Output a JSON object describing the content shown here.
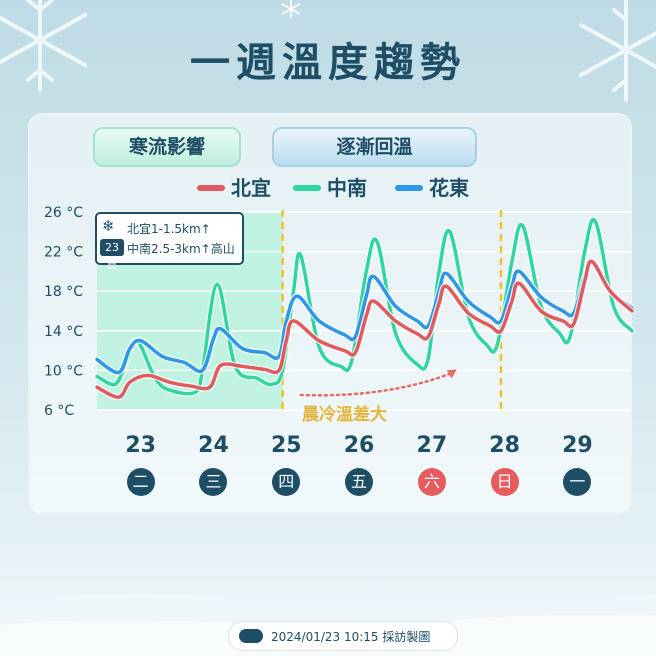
{
  "title": "一週溫度趨勢",
  "phases": [
    "寒流影響",
    "逐漸回溫"
  ],
  "annotation": {
    "badge": "23日",
    "line1": "北宜1-1.5km↑",
    "line2": "中南2.5-3km↑高山"
  },
  "note": "晨冷溫差大",
  "footer": "2024/01/23 10:15 採訪製圖",
  "colors": {
    "title": "#1d4e66",
    "northeast": "#e05a5e",
    "central_south": "#2fd6a0",
    "hualien": "#2e97e8",
    "weekend": "#e55b5e",
    "weekday": "#1d4e66",
    "highlight_line": "#f0c12c"
  },
  "icons": [
    "snowflake-icon",
    "cwa-logo-icon",
    "snowflake-decoration-icon"
  ],
  "chart_data": {
    "type": "line",
    "title": "",
    "xlabel": "",
    "ylabel": "",
    "ylim": [
      6,
      26
    ],
    "yticks": [
      "6 °C",
      "10 °C",
      "14 °C",
      "18 °C",
      "22 °C",
      "26 °C"
    ],
    "ytick_values": [
      6,
      10,
      14,
      18,
      22,
      26
    ],
    "legend_position": "top-center",
    "grid": true,
    "days": [
      {
        "date": "23",
        "weekday": "二",
        "weekend": false
      },
      {
        "date": "24",
        "weekday": "三",
        "weekend": false
      },
      {
        "date": "25",
        "weekday": "四",
        "weekend": false
      },
      {
        "date": "26",
        "weekday": "五",
        "weekend": false
      },
      {
        "date": "27",
        "weekday": "六",
        "weekend": true
      },
      {
        "date": "28",
        "weekday": "日",
        "weekend": true
      },
      {
        "date": "29",
        "weekday": "一",
        "weekend": false
      }
    ],
    "x_start_day": 22.4,
    "x_end_day": 29.75,
    "markers_day": [
      24.95,
      27.95
    ],
    "cold_band_end_day": 24.95,
    "series": [
      {
        "name": "北宜",
        "color": "#e05a5e",
        "points": [
          [
            22.4,
            8.3
          ],
          [
            22.7,
            7.3
          ],
          [
            22.85,
            8.8
          ],
          [
            23.1,
            9.5
          ],
          [
            23.4,
            8.8
          ],
          [
            23.7,
            8.4
          ],
          [
            23.95,
            8.3
          ],
          [
            24.1,
            10.5
          ],
          [
            24.4,
            10.4
          ],
          [
            24.7,
            10.1
          ],
          [
            24.9,
            10.0
          ],
          [
            25.0,
            13.0
          ],
          [
            25.1,
            15.0
          ],
          [
            25.45,
            13.0
          ],
          [
            25.8,
            12.0
          ],
          [
            25.95,
            11.8
          ],
          [
            26.1,
            15.5
          ],
          [
            26.2,
            17.0
          ],
          [
            26.5,
            15.0
          ],
          [
            26.8,
            13.7
          ],
          [
            26.95,
            13.4
          ],
          [
            27.1,
            16.8
          ],
          [
            27.2,
            18.5
          ],
          [
            27.5,
            15.8
          ],
          [
            27.8,
            14.5
          ],
          [
            27.95,
            14.0
          ],
          [
            28.1,
            17.0
          ],
          [
            28.2,
            18.8
          ],
          [
            28.5,
            16.0
          ],
          [
            28.8,
            15.0
          ],
          [
            28.95,
            14.7
          ],
          [
            29.1,
            19.0
          ],
          [
            29.2,
            21.0
          ],
          [
            29.45,
            18.0
          ],
          [
            29.75,
            16.0
          ]
        ]
      },
      {
        "name": "中南",
        "color": "#2fd6a0",
        "points": [
          [
            22.4,
            9.4
          ],
          [
            22.65,
            8.6
          ],
          [
            22.8,
            10.8
          ],
          [
            22.95,
            13.0
          ],
          [
            23.2,
            9.2
          ],
          [
            23.4,
            8.0
          ],
          [
            23.75,
            7.8
          ],
          [
            23.85,
            10.0
          ],
          [
            24.05,
            18.7
          ],
          [
            24.3,
            10.4
          ],
          [
            24.6,
            9.2
          ],
          [
            24.8,
            8.6
          ],
          [
            24.95,
            10.0
          ],
          [
            25.1,
            18.0
          ],
          [
            25.2,
            21.6
          ],
          [
            25.45,
            12.4
          ],
          [
            25.75,
            10.4
          ],
          [
            25.9,
            11.0
          ],
          [
            26.1,
            20.0
          ],
          [
            26.25,
            23.0
          ],
          [
            26.5,
            13.8
          ],
          [
            26.8,
            10.6
          ],
          [
            26.95,
            11.2
          ],
          [
            27.1,
            20.0
          ],
          [
            27.25,
            24.0
          ],
          [
            27.5,
            15.5
          ],
          [
            27.75,
            12.6
          ],
          [
            27.9,
            12.6
          ],
          [
            28.1,
            21.0
          ],
          [
            28.25,
            24.6
          ],
          [
            28.5,
            16.5
          ],
          [
            28.75,
            13.8
          ],
          [
            28.9,
            13.4
          ],
          [
            29.1,
            22.0
          ],
          [
            29.25,
            25.0
          ],
          [
            29.5,
            16.4
          ],
          [
            29.75,
            14.0
          ]
        ]
      },
      {
        "name": "花東",
        "color": "#2e97e8",
        "points": [
          [
            22.4,
            11.1
          ],
          [
            22.7,
            9.8
          ],
          [
            22.85,
            12.2
          ],
          [
            23.0,
            13.0
          ],
          [
            23.3,
            11.4
          ],
          [
            23.6,
            10.8
          ],
          [
            23.85,
            10.0
          ],
          [
            24.0,
            13.2
          ],
          [
            24.1,
            14.2
          ],
          [
            24.4,
            12.2
          ],
          [
            24.7,
            11.8
          ],
          [
            24.9,
            11.4
          ],
          [
            25.0,
            15.0
          ],
          [
            25.15,
            17.5
          ],
          [
            25.45,
            15.0
          ],
          [
            25.8,
            13.6
          ],
          [
            25.95,
            13.4
          ],
          [
            26.1,
            17.5
          ],
          [
            26.2,
            19.5
          ],
          [
            26.5,
            16.5
          ],
          [
            26.8,
            15.0
          ],
          [
            26.95,
            14.5
          ],
          [
            27.1,
            18.0
          ],
          [
            27.2,
            19.8
          ],
          [
            27.5,
            17.0
          ],
          [
            27.8,
            15.4
          ],
          [
            27.95,
            15.0
          ],
          [
            28.1,
            18.5
          ],
          [
            28.2,
            20.0
          ],
          [
            28.5,
            17.4
          ],
          [
            28.8,
            16.0
          ],
          [
            28.95,
            15.8
          ],
          [
            29.1,
            19.5
          ],
          [
            29.2,
            21.0
          ],
          [
            29.45,
            18.0
          ],
          [
            29.75,
            16.3
          ]
        ]
      }
    ]
  }
}
